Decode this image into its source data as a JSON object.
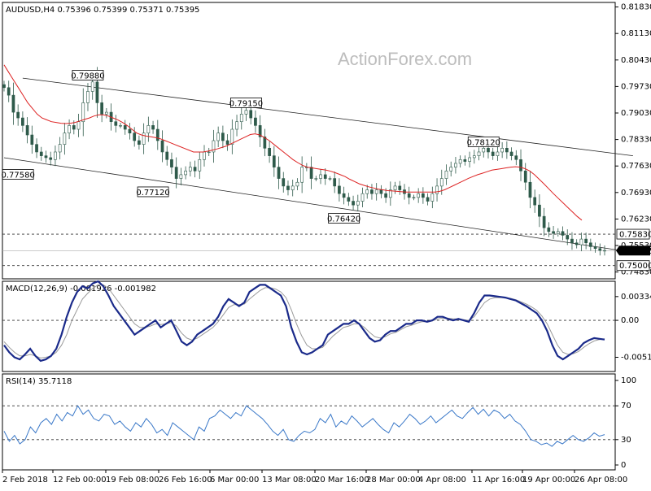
{
  "chart_data": [
    {
      "type": "candlestick",
      "header": {
        "symbol": "AUDUSD,H4",
        "ohlc": "0.75396 0.75399 0.75371 0.75395"
      },
      "watermark": "ActionForex.com",
      "y_ticks": [
        "0.81830",
        "0.81130",
        "0.80430",
        "0.79730",
        "0.79030",
        "0.78330",
        "0.77630",
        "0.76930",
        "0.76230",
        "0.75530",
        "0.74830"
      ],
      "y_tick_values": [
        0.8183,
        0.8113,
        0.8043,
        0.7973,
        0.7903,
        0.7833,
        0.7763,
        0.7693,
        0.7623,
        0.7553,
        0.7483
      ],
      "ylim": [
        0.7465,
        0.8195
      ],
      "x_labels": [
        "2 Feb 2018",
        "12 Feb 00:00",
        "19 Feb 08:00",
        "26 Feb 16:00",
        "6 Mar 00:00",
        "13 Mar 08:00",
        "20 Mar 16:00",
        "28 Mar 00:00",
        "4 Apr 08:00",
        "11 Apr 16:00",
        "19 Apr 00:00",
        "26 Apr 08:00"
      ],
      "price_series": [
        0.797,
        0.795,
        0.7905,
        0.789,
        0.787,
        0.7845,
        0.782,
        0.78,
        0.779,
        0.7785,
        0.778,
        0.78,
        0.782,
        0.785,
        0.787,
        0.786,
        0.788,
        0.793,
        0.796,
        0.7985,
        0.793,
        0.79,
        0.7905,
        0.788,
        0.787,
        0.787,
        0.786,
        0.785,
        0.783,
        0.782,
        0.785,
        0.787,
        0.786,
        0.783,
        0.78,
        0.778,
        0.776,
        0.773,
        0.774,
        0.775,
        0.776,
        0.775,
        0.778,
        0.78,
        0.78,
        0.783,
        0.785,
        0.783,
        0.782,
        0.786,
        0.788,
        0.79,
        0.791,
        0.789,
        0.787,
        0.784,
        0.781,
        0.779,
        0.776,
        0.773,
        0.771,
        0.77,
        0.771,
        0.772,
        0.776,
        0.776,
        0.773,
        0.773,
        0.774,
        0.773,
        0.773,
        0.771,
        0.769,
        0.768,
        0.767,
        0.766,
        0.767,
        0.769,
        0.77,
        0.769,
        0.77,
        0.769,
        0.768,
        0.77,
        0.771,
        0.77,
        0.769,
        0.768,
        0.768,
        0.769,
        0.768,
        0.767,
        0.769,
        0.771,
        0.773,
        0.775,
        0.776,
        0.777,
        0.778,
        0.7775,
        0.7785,
        0.779,
        0.78,
        0.781,
        0.78,
        0.779,
        0.78,
        0.781,
        0.78,
        0.779,
        0.778,
        0.775,
        0.772,
        0.768,
        0.766,
        0.763,
        0.76,
        0.759,
        0.7585,
        0.759,
        0.758,
        0.757,
        0.756,
        0.7555,
        0.757,
        0.756,
        0.755,
        0.7545,
        0.754,
        0.754
      ],
      "ma_series": [
        0.803,
        0.801,
        0.799,
        0.797,
        0.795,
        0.793,
        0.7915,
        0.79,
        0.789,
        0.7885,
        0.788,
        0.7878,
        0.7876,
        0.7875,
        0.7876,
        0.7878,
        0.7882,
        0.7886,
        0.789,
        0.7895,
        0.7898,
        0.7898,
        0.7895,
        0.789,
        0.7885,
        0.7878,
        0.787,
        0.786,
        0.785,
        0.7845,
        0.7842,
        0.784,
        0.7838,
        0.7835,
        0.783,
        0.7825,
        0.782,
        0.7815,
        0.781,
        0.7805,
        0.78,
        0.78,
        0.78,
        0.7802,
        0.7805,
        0.7808,
        0.7812,
        0.7816,
        0.7822,
        0.7828,
        0.7834,
        0.784,
        0.7846,
        0.7848,
        0.7845,
        0.7838,
        0.783,
        0.782,
        0.781,
        0.78,
        0.779,
        0.778,
        0.7772,
        0.7765,
        0.776,
        0.7758,
        0.7756,
        0.7754,
        0.7752,
        0.7749,
        0.7745,
        0.774,
        0.7735,
        0.7728,
        0.7722,
        0.7716,
        0.7712,
        0.7708,
        0.7705,
        0.7702,
        0.77,
        0.7698,
        0.7697,
        0.7696,
        0.7695,
        0.7694,
        0.7694,
        0.7694,
        0.7694,
        0.7694,
        0.7694,
        0.7694,
        0.7696,
        0.77,
        0.7706,
        0.7712,
        0.7718,
        0.7724,
        0.773,
        0.7735,
        0.774,
        0.7744,
        0.7748,
        0.7752,
        0.7754,
        0.7756,
        0.7758,
        0.776,
        0.7761,
        0.776,
        0.7756,
        0.775,
        0.774,
        0.7728,
        0.7716,
        0.7703,
        0.769,
        0.7678,
        0.7666,
        0.7654,
        0.7642,
        0.763,
        0.762
      ],
      "channel_upper": [
        {
          "x_index": 4,
          "y": 0.7995
        },
        {
          "x_index": 133,
          "y": 0.779
        }
      ],
      "channel_lower": [
        {
          "x_index": 0,
          "y": 0.7785
        },
        {
          "x_index": 133,
          "y": 0.7535
        }
      ],
      "hlines": [
        0.7583,
        0.75
      ],
      "current_price": 0.75395,
      "price_labels": [
        {
          "text": "0.79880",
          "price": 0.7988,
          "x_index": 18,
          "pos": "above"
        },
        {
          "text": "0.79150",
          "price": 0.7915,
          "x_index": 52,
          "pos": "above"
        },
        {
          "text": "0.78120",
          "price": 0.7812,
          "x_index": 103,
          "pos": "above"
        },
        {
          "text": "0.77580",
          "price": 0.7758,
          "x_index": 3,
          "pos": "below"
        },
        {
          "text": "0.77120",
          "price": 0.7712,
          "x_index": 32,
          "pos": "below"
        },
        {
          "text": "0.76420",
          "price": 0.7642,
          "x_index": 73,
          "pos": "below"
        }
      ],
      "axis_marks": [
        {
          "text": "0.75830",
          "price": 0.7583,
          "kind": "boxed"
        },
        {
          "text": "0.75395",
          "price": 0.75395,
          "kind": "current"
        },
        {
          "text": "0.75000",
          "price": 0.75,
          "kind": "boxed"
        }
      ]
    },
    {
      "type": "line",
      "name": "MACD",
      "header": {
        "label": "MACD(12,26,9)",
        "values": "-0.001926 -0.001982"
      },
      "y_ticks": [
        "0.003345",
        "0.00",
        "-0.005197"
      ],
      "y_tick_values": [
        0.003345,
        0.0,
        -0.005197
      ],
      "ylim": [
        -0.0072,
        0.0055
      ],
      "macd": [
        -0.0035,
        -0.0045,
        -0.0052,
        -0.0055,
        -0.0048,
        -0.004,
        -0.005,
        -0.0057,
        -0.0055,
        -0.005,
        -0.004,
        -0.002,
        0.0005,
        0.0025,
        0.004,
        0.0048,
        0.0045,
        0.0052,
        0.0055,
        0.0048,
        0.0035,
        0.002,
        0.001,
        0.0,
        -0.001,
        -0.002,
        -0.0015,
        -0.001,
        -0.0005,
        0.0,
        -0.001,
        -0.0005,
        0.0,
        -0.0015,
        -0.003,
        -0.0035,
        -0.003,
        -0.002,
        -0.0015,
        -0.001,
        -0.0005,
        0.0005,
        0.002,
        0.003,
        0.0025,
        0.002,
        0.0025,
        0.004,
        0.0045,
        0.005,
        0.005,
        0.0045,
        0.004,
        0.0035,
        0.002,
        -0.001,
        -0.003,
        -0.0045,
        -0.0048,
        -0.0045,
        -0.004,
        -0.0035,
        -0.002,
        -0.0015,
        -0.001,
        -0.0005,
        -0.0005,
        0.0,
        -0.0005,
        -0.0015,
        -0.0025,
        -0.003,
        -0.0028,
        -0.002,
        -0.0015,
        -0.0015,
        -0.001,
        -0.0005,
        -0.0005,
        0.0,
        0.0,
        -0.0002,
        0.0,
        0.0005,
        0.0005,
        0.0002,
        0.0,
        0.0002,
        0.0,
        -0.0002,
        0.001,
        0.0025,
        0.0035,
        0.0035,
        0.0034,
        0.0033,
        0.0032,
        0.003,
        0.0028,
        0.0024,
        0.002,
        0.0015,
        0.001,
        0.0,
        -0.0015,
        -0.0035,
        -0.005,
        -0.0055,
        -0.005,
        -0.0045,
        -0.004,
        -0.0032,
        -0.0028,
        -0.0025,
        -0.0026,
        -0.0027
      ],
      "signal": [
        -0.003,
        -0.0038,
        -0.0045,
        -0.005,
        -0.005,
        -0.0048,
        -0.005,
        -0.0053,
        -0.0052,
        -0.005,
        -0.0045,
        -0.0035,
        -0.002,
        0.0,
        0.0015,
        0.003,
        0.0038,
        0.0045,
        0.005,
        0.005,
        0.0045,
        0.0035,
        0.0025,
        0.0015,
        0.0005,
        -0.0005,
        -0.001,
        -0.001,
        -0.0008,
        -0.0005,
        -0.0006,
        -0.0005,
        -0.0003,
        -0.0008,
        -0.0018,
        -0.0025,
        -0.0028,
        -0.0025,
        -0.002,
        -0.0015,
        -0.001,
        -0.0002,
        0.0008,
        0.0018,
        0.0022,
        0.0022,
        0.0023,
        0.003,
        0.0036,
        0.0042,
        0.0046,
        0.0046,
        0.0044,
        0.004,
        0.0032,
        0.0015,
        -0.0005,
        -0.0022,
        -0.0035,
        -0.004,
        -0.004,
        -0.0038,
        -0.003,
        -0.0022,
        -0.0016,
        -0.001,
        -0.0008,
        -0.0005,
        -0.0005,
        -0.001,
        -0.0017,
        -0.0023,
        -0.0025,
        -0.0023,
        -0.0019,
        -0.0017,
        -0.0013,
        -0.0009,
        -0.0007,
        -0.0004,
        -0.0002,
        -0.0002,
        -0.0001,
        0.0002,
        0.0003,
        0.0003,
        0.0002,
        0.0002,
        0.0001,
        0.0,
        0.0005,
        0.0015,
        0.0025,
        0.003,
        0.0032,
        0.0032,
        0.0032,
        0.0031,
        0.0029,
        0.0026,
        0.0023,
        0.0019,
        0.0014,
        0.0006,
        -0.0005,
        -0.002,
        -0.0035,
        -0.0045,
        -0.0048,
        -0.0047,
        -0.0044,
        -0.0038,
        -0.0033,
        -0.0029,
        -0.0027,
        -0.0026
      ]
    },
    {
      "type": "line",
      "name": "RSI",
      "header": {
        "label": "RSI(14)",
        "value": "35.7118"
      },
      "y_ticks": [
        "100",
        "70",
        "30",
        "0"
      ],
      "y_tick_values": [
        100,
        70,
        30,
        0
      ],
      "ylim": [
        0,
        100
      ],
      "rsi": [
        40,
        28,
        35,
        25,
        30,
        45,
        38,
        50,
        55,
        48,
        60,
        52,
        62,
        58,
        70,
        60,
        65,
        55,
        52,
        60,
        58,
        48,
        52,
        45,
        40,
        50,
        45,
        55,
        48,
        38,
        42,
        35,
        50,
        45,
        40,
        35,
        30,
        45,
        40,
        55,
        58,
        65,
        60,
        55,
        62,
        58,
        70,
        65,
        60,
        55,
        48,
        40,
        35,
        42,
        30,
        28,
        35,
        40,
        38,
        42,
        55,
        50,
        60,
        45,
        52,
        48,
        58,
        52,
        45,
        50,
        55,
        48,
        42,
        38,
        50,
        45,
        52,
        60,
        55,
        48,
        52,
        58,
        50,
        55,
        60,
        65,
        58,
        55,
        62,
        68,
        60,
        66,
        58,
        65,
        62,
        55,
        60,
        52,
        48,
        40,
        30,
        28,
        24,
        26,
        22,
        28,
        25,
        30,
        35,
        30,
        28,
        32,
        38,
        34,
        36
      ]
    }
  ]
}
